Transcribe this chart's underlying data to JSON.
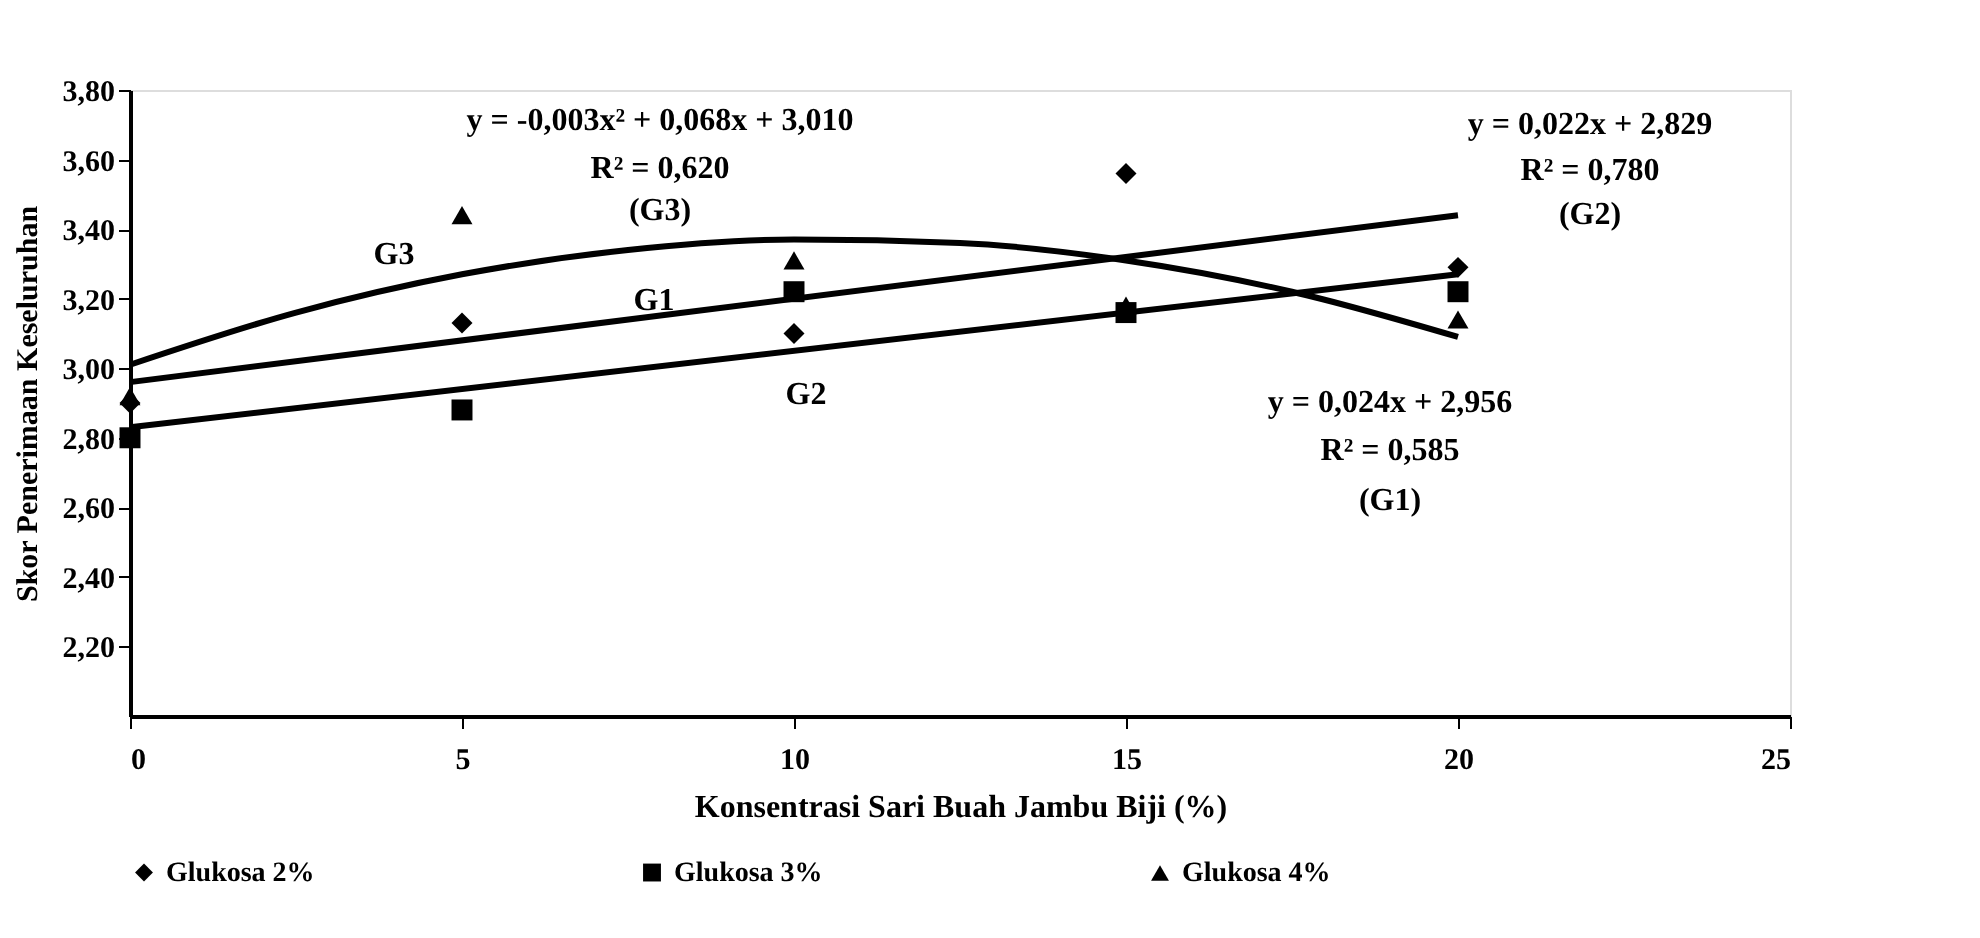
{
  "chart_data": {
    "type": "scatter",
    "xlabel": "Konsentrasi Sari Buah Jambu Biji (%)",
    "ylabel": "Skor Penerimaan Keseluruhan",
    "xlim": [
      0,
      25
    ],
    "xticks": [
      0,
      5,
      10,
      15,
      20,
      25
    ],
    "ylim": [
      2.0,
      3.8
    ],
    "yticks": [
      {
        "value": 2.2,
        "label": "2,20"
      },
      {
        "value": 2.4,
        "label": "2,40"
      },
      {
        "value": 2.6,
        "label": "2,60"
      },
      {
        "value": 2.8,
        "label": "2,80"
      },
      {
        "value": 3.0,
        "label": "3,00"
      },
      {
        "value": 3.2,
        "label": "3,20"
      },
      {
        "value": 3.4,
        "label": "3,40"
      },
      {
        "value": 3.6,
        "label": "3,60"
      },
      {
        "value": 3.8,
        "label": "3,80"
      }
    ],
    "grid": false,
    "legend": "bottom",
    "x": [
      0,
      5,
      10,
      15,
      20
    ],
    "series": [
      {
        "name": "Glukosa 2%",
        "color": "#000000",
        "marker": "diamond",
        "values": [
          2.9,
          3.13,
          3.1,
          3.56,
          3.29
        ]
      },
      {
        "name": "Glukosa 3%",
        "color": "#000000",
        "marker": "square",
        "values": [
          2.8,
          2.88,
          3.22,
          3.16,
          3.22
        ]
      },
      {
        "name": "Glukosa 4%",
        "color": "#000000",
        "marker": "triangle",
        "values": [
          2.92,
          3.44,
          3.31,
          3.18,
          3.14
        ]
      },
      {
        "color": "#000000",
        "type": "line",
        "x": [
          0,
          20
        ],
        "values": [
          2.96,
          3.44
        ]
      },
      {
        "color": "#000000",
        "type": "line",
        "x": [
          0,
          20
        ],
        "values": [
          2.83,
          3.27
        ]
      },
      {
        "color": "#000000",
        "type": "line",
        "x": [
          0,
          2.5,
          5,
          7.5,
          10,
          12.5,
          15,
          17.5,
          20
        ],
        "values": [
          3.01,
          3.16,
          3.27,
          3.34,
          3.37,
          3.36,
          3.31,
          3.22,
          3.09
        ]
      }
    ],
    "annotations": [
      "y = -0,003x² + 0,068x + 3,010",
      "R² = 0,620",
      "(G3)",
      "y = 0,022x + 2,829",
      "R² = 0,780",
      "(G2)",
      "y = 0,024x + 2,956",
      "R² = 0,585",
      "(G1)",
      "G3",
      "G1",
      "G2"
    ]
  }
}
